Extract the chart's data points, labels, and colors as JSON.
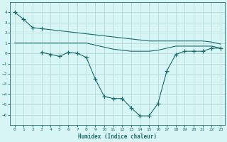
{
  "x": [
    0,
    1,
    2,
    3,
    4,
    5,
    6,
    7,
    8,
    9,
    10,
    11,
    12,
    13,
    14,
    15,
    16,
    17,
    18,
    19,
    20,
    21,
    22,
    23
  ],
  "line_top": [
    4.0,
    3.3,
    2.5,
    2.4,
    2.3,
    2.2,
    2.1,
    2.0,
    1.9,
    1.8,
    1.7,
    1.6,
    1.5,
    1.4,
    1.3,
    1.2,
    1.2,
    1.2,
    1.2,
    1.2,
    1.2,
    1.2,
    1.1,
    0.9
  ],
  "line_mid": [
    1.0,
    1.0,
    1.0,
    1.0,
    1.0,
    1.0,
    1.0,
    1.0,
    1.0,
    0.8,
    0.6,
    0.4,
    0.3,
    0.2,
    0.2,
    0.2,
    0.3,
    0.5,
    0.7,
    0.7,
    0.7,
    0.7,
    0.7,
    0.5
  ],
  "line_v_x": [
    3,
    4,
    5,
    6,
    7,
    8,
    9,
    10,
    11,
    12,
    13,
    14,
    15,
    16,
    17,
    18,
    19,
    20,
    21,
    22,
    23
  ],
  "line_v_y": [
    0.1,
    -0.1,
    -0.3,
    0.1,
    0.0,
    -0.4,
    -2.5,
    -4.2,
    -4.4,
    -4.4,
    -5.3,
    -6.1,
    -6.1,
    -4.9,
    -1.7,
    -0.1,
    0.2,
    0.2,
    0.2,
    0.5,
    0.5
  ],
  "line1_x": [
    0,
    1,
    2,
    3
  ],
  "line1_y": [
    4.0,
    3.3,
    2.5,
    2.4
  ],
  "color": "#1a6b6b",
  "bg_color": "#d8f5f5",
  "grid_color": "#b0d8d8",
  "xlabel": "Humidex (Indice chaleur)",
  "ylim": [
    -7,
    5
  ],
  "xlim": [
    -0.5,
    23.5
  ],
  "yticks": [
    -6,
    -5,
    -4,
    -3,
    -2,
    -1,
    0,
    1,
    2,
    3,
    4
  ],
  "xticks": [
    0,
    1,
    2,
    3,
    4,
    5,
    6,
    7,
    8,
    9,
    10,
    11,
    12,
    13,
    14,
    15,
    16,
    17,
    18,
    19,
    20,
    21,
    22,
    23
  ]
}
